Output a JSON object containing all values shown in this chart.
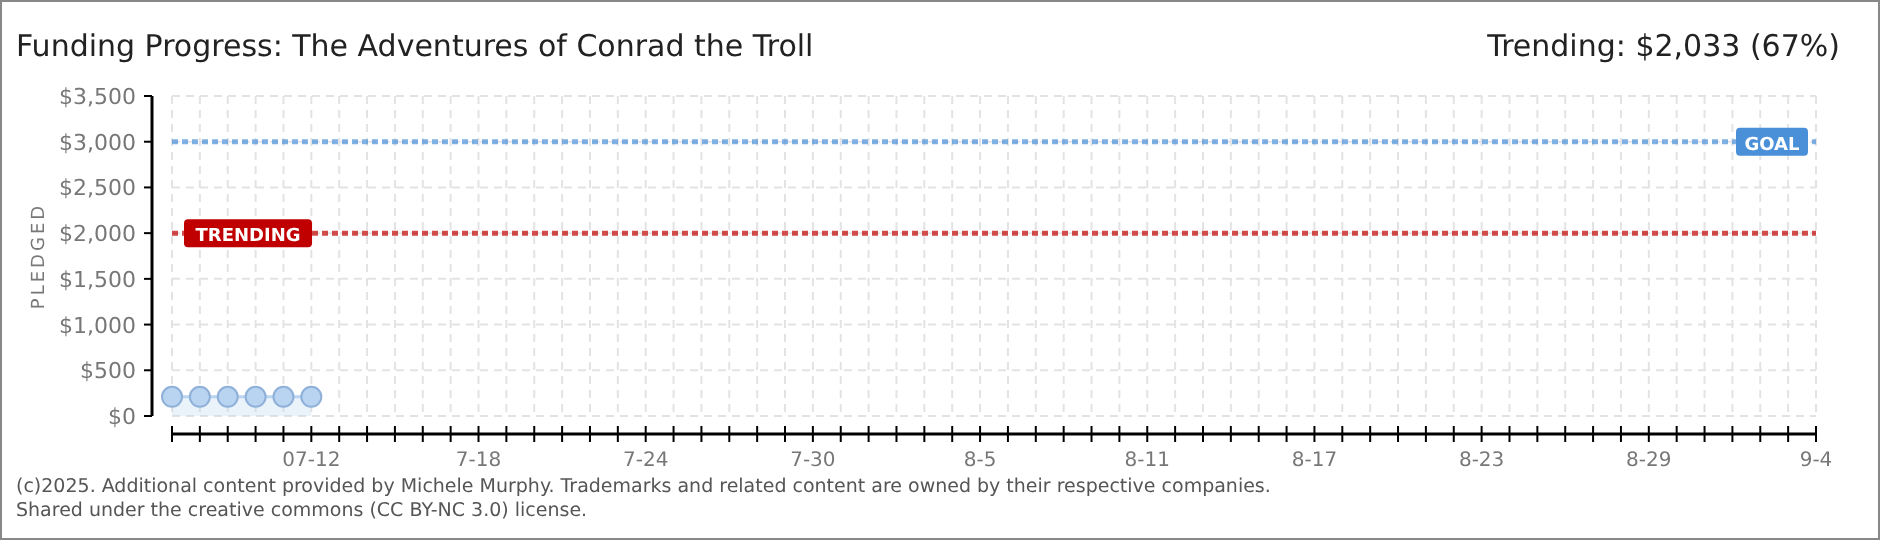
{
  "chart_data": {
    "type": "area",
    "title": "Funding Progress: The Adventures of Conrad the Troll",
    "annotations": [
      "Trending: $2,033 (67%)",
      "(c)2025. Additional content provided by Michele Murphy. Trademarks and related content are owned by their respective companies.",
      "Shared under the creative commons (CC BY-NC 3.0) license."
    ],
    "ylabel": "PLEDGED",
    "x": [
      "2025-07-07",
      "2025-07-08",
      "2025-07-09",
      "2025-07-10",
      "2025-07-11",
      "2025-07-12"
    ],
    "series": [
      {
        "color": "#b8d4f0",
        "values": [
          210,
          210,
          210,
          210,
          210,
          210
        ]
      }
    ],
    "marker": "circle",
    "grid": true,
    "xlim": [
      "2025-07-07",
      "2025-09-04"
    ],
    "xticks": [
      {
        "value": "2025-07-07",
        "label": null
      },
      {
        "value": "2025-07-08",
        "label": null
      },
      {
        "value": "2025-07-09",
        "label": null
      },
      {
        "value": "2025-07-10",
        "label": null
      },
      {
        "value": "2025-07-11",
        "label": null
      },
      {
        "value": "2025-07-12",
        "label": "07-12"
      },
      {
        "value": "2025-07-13",
        "label": null
      },
      {
        "value": "2025-07-14",
        "label": null
      },
      {
        "value": "2025-07-15",
        "label": null
      },
      {
        "value": "2025-07-16",
        "label": null
      },
      {
        "value": "2025-07-17",
        "label": null
      },
      {
        "value": "2025-07-18",
        "label": "7-18"
      },
      {
        "value": "2025-07-19",
        "label": null
      },
      {
        "value": "2025-07-20",
        "label": null
      },
      {
        "value": "2025-07-21",
        "label": null
      },
      {
        "value": "2025-07-22",
        "label": null
      },
      {
        "value": "2025-07-23",
        "label": null
      },
      {
        "value": "2025-07-24",
        "label": "7-24"
      },
      {
        "value": "2025-07-25",
        "label": null
      },
      {
        "value": "2025-07-26",
        "label": null
      },
      {
        "value": "2025-07-27",
        "label": null
      },
      {
        "value": "2025-07-28",
        "label": null
      },
      {
        "value": "2025-07-29",
        "label": null
      },
      {
        "value": "2025-07-30",
        "label": "7-30"
      },
      {
        "value": "2025-07-31",
        "label": null
      },
      {
        "value": "2025-08-01",
        "label": null
      },
      {
        "value": "2025-08-02",
        "label": null
      },
      {
        "value": "2025-08-03",
        "label": null
      },
      {
        "value": "2025-08-04",
        "label": null
      },
      {
        "value": "2025-08-05",
        "label": "8-5"
      },
      {
        "value": "2025-08-06",
        "label": null
      },
      {
        "value": "2025-08-07",
        "label": null
      },
      {
        "value": "2025-08-08",
        "label": null
      },
      {
        "value": "2025-08-09",
        "label": null
      },
      {
        "value": "2025-08-10",
        "label": null
      },
      {
        "value": "2025-08-11",
        "label": "8-11"
      },
      {
        "value": "2025-08-12",
        "label": null
      },
      {
        "value": "2025-08-13",
        "label": null
      },
      {
        "value": "2025-08-14",
        "label": null
      },
      {
        "value": "2025-08-15",
        "label": null
      },
      {
        "value": "2025-08-16",
        "label": null
      },
      {
        "value": "2025-08-17",
        "label": "8-17"
      },
      {
        "value": "2025-08-18",
        "label": null
      },
      {
        "value": "2025-08-19",
        "label": null
      },
      {
        "value": "2025-08-20",
        "label": null
      },
      {
        "value": "2025-08-21",
        "label": null
      },
      {
        "value": "2025-08-22",
        "label": null
      },
      {
        "value": "2025-08-23",
        "label": "8-23"
      },
      {
        "value": "2025-08-24",
        "label": null
      },
      {
        "value": "2025-08-25",
        "label": null
      },
      {
        "value": "2025-08-26",
        "label": null
      },
      {
        "value": "2025-08-27",
        "label": null
      },
      {
        "value": "2025-08-28",
        "label": null
      },
      {
        "value": "2025-08-29",
        "label": "8-29"
      },
      {
        "value": "2025-08-30",
        "label": null
      },
      {
        "value": "2025-08-31",
        "label": null
      },
      {
        "value": "2025-09-01",
        "label": null
      },
      {
        "value": "2025-09-02",
        "label": null
      },
      {
        "value": "2025-09-03",
        "label": null
      },
      {
        "value": "2025-09-04",
        "label": "9-4"
      }
    ],
    "ylim": [
      0,
      3500
    ],
    "yticks": [
      {
        "value": 0,
        "label": "$0"
      },
      {
        "value": 500,
        "label": "$500"
      },
      {
        "value": 1000,
        "label": "$1,000"
      },
      {
        "value": 1500,
        "label": "$1,500"
      },
      {
        "value": 2000,
        "label": "$2,000"
      },
      {
        "value": 2500,
        "label": "$2,500"
      },
      {
        "value": 3000,
        "label": "$3,000"
      },
      {
        "value": 3500,
        "label": "$3,500"
      }
    ],
    "ref_lines": [
      {
        "axis": "y",
        "value": 3000,
        "label": "GOAL",
        "color": "#4a90d9",
        "line_style": "dotted"
      },
      {
        "axis": "y",
        "value": 2000,
        "label": "TRENDING",
        "color": "#c00000",
        "line_style": "dotted"
      }
    ]
  }
}
